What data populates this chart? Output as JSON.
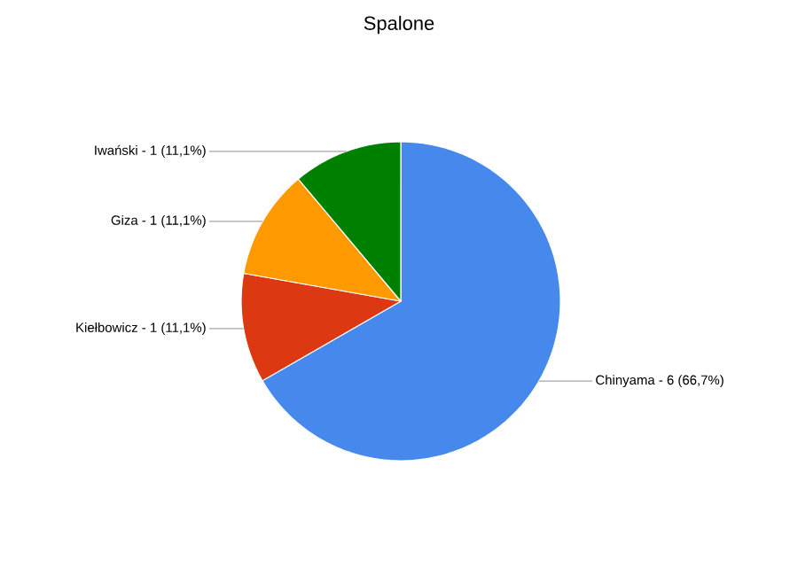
{
  "chart_data": {
    "type": "pie",
    "title": "Spalone",
    "categories": [
      "Chinyama - 6 (66,7%)",
      "Kiełbowicz - 1 (11,1%)",
      "Giza - 1 (11,1%)",
      "Iwański - 1 (11,1%)"
    ],
    "values": [
      66.7,
      11.1,
      11.1,
      11.1
    ],
    "colors": [
      "#4788ec",
      "#dc3912",
      "#ff9900",
      "#008000"
    ],
    "legend": false
  }
}
